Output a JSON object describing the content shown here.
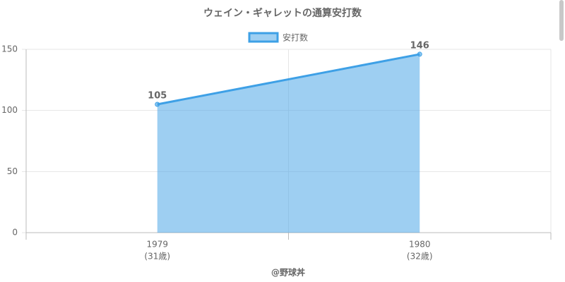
{
  "chart_data": {
    "type": "line",
    "title": "ウェイン・ギャレットの通算安打数",
    "categories": [
      "1979",
      "1980"
    ],
    "category_sublabels": [
      "(31歳)",
      "(32歳)"
    ],
    "x_label": "@野球丼",
    "series": [
      {
        "name": "安打数",
        "color": "#3ea0e6",
        "values": [
          105,
          146
        ]
      }
    ],
    "ylim": [
      0,
      150
    ],
    "yticks": [
      0,
      50,
      100,
      150
    ],
    "grid": true,
    "area": true,
    "legend": "top"
  }
}
